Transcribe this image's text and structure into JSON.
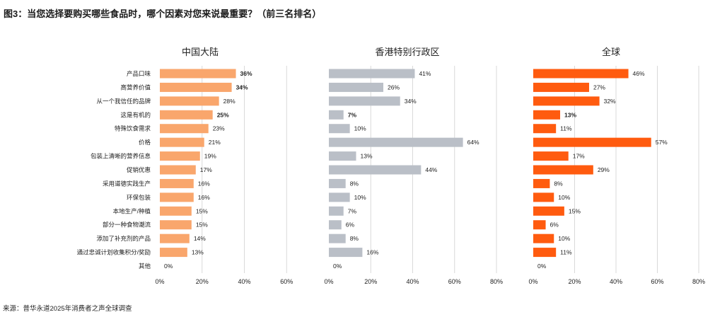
{
  "chart_data": {
    "type": "bar",
    "orientation": "horizontal",
    "title": "图3：当您选择要购买哪些食品时，哪个因素对您来说最重要？（前三名排名）",
    "categories": [
      "产品口味",
      "高营养价值",
      "从一个我信任的品牌",
      "这是有机的",
      "特殊饮食需求",
      "价格",
      "包装上清晰的营养信息",
      "促销优惠",
      "采用道德实践生产",
      "环保包装",
      "本地生产/种植",
      "部分一种食物潮流",
      "添加了补充剂的产品",
      "通过忠诚计划收集积分/奖励",
      "其他"
    ],
    "unit": "%",
    "grid": true,
    "legend": "none",
    "series": [
      {
        "name": "中国大陆",
        "values": [
          36,
          34,
          28,
          25,
          23,
          21,
          19,
          17,
          16,
          16,
          15,
          15,
          14,
          13,
          0
        ],
        "color": "#F9A66C",
        "bold_labels": [
          0,
          1,
          3
        ],
        "xlim": [
          0,
          80
        ],
        "tick_values": [
          0,
          20,
          40,
          60
        ],
        "tick_labels": [
          "0%",
          "20%",
          "40%",
          "60%"
        ]
      },
      {
        "name": "香港特别行政区",
        "values": [
          41,
          26,
          34,
          7,
          10,
          64,
          13,
          44,
          8,
          10,
          7,
          6,
          8,
          16,
          0
        ],
        "color": "#BABFC7",
        "bold_labels": [
          3
        ],
        "xlim": [
          0,
          80
        ],
        "tick_values": [
          0,
          20,
          40,
          60,
          80
        ],
        "tick_labels": [
          "0%",
          "20%",
          "40%",
          "60%",
          "80%"
        ]
      },
      {
        "name": "全球",
        "values": [
          46,
          27,
          32,
          13,
          11,
          57,
          17,
          29,
          8,
          10,
          15,
          6,
          10,
          11,
          0
        ],
        "color": "#FF5B0F",
        "bold_labels": [
          3
        ],
        "xlim": [
          0,
          80
        ],
        "tick_values": [
          0,
          20,
          40,
          60,
          80
        ],
        "tick_labels": [
          "0%",
          "20%",
          "40%",
          "60%",
          "80%"
        ]
      }
    ]
  },
  "source": "来源：普华永道2025年消费者之声全球调查"
}
